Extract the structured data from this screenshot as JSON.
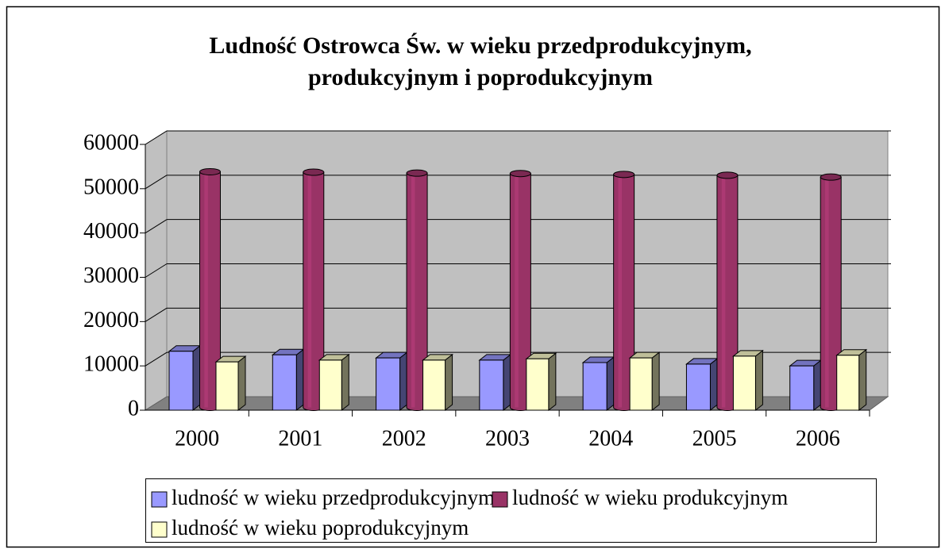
{
  "chart_data": {
    "type": "bar3d",
    "title": [
      "Ludność Ostrowca Św. w wieku przedprodukcyjnym,",
      "produkcyjnym i poprodukcyjnym"
    ],
    "categories": [
      "2000",
      "2001",
      "2002",
      "2003",
      "2004",
      "2005",
      "2006"
    ],
    "series": [
      {
        "name": "ludność w wieku przedprodukcyjnym",
        "color": "#9999ff",
        "shape": "box",
        "values": [
          13300,
          12500,
          11800,
          11300,
          10750,
          10400,
          10000
        ]
      },
      {
        "name": "ludność w wieku produkcyjnym",
        "color": "#993366",
        "shape": "cylinder",
        "values": [
          53200,
          53100,
          52900,
          52800,
          52600,
          52400,
          52000
        ]
      },
      {
        "name": "ludność w wieku poprodukcyjnym",
        "color": "#ffffcc",
        "shape": "box",
        "values": [
          10900,
          11300,
          11300,
          11600,
          11800,
          12200,
          12400
        ]
      }
    ],
    "ylim": [
      0,
      60000
    ],
    "yticks": [
      0,
      10000,
      20000,
      30000,
      40000,
      50000,
      60000
    ],
    "grid": true,
    "legend": "bottom"
  }
}
